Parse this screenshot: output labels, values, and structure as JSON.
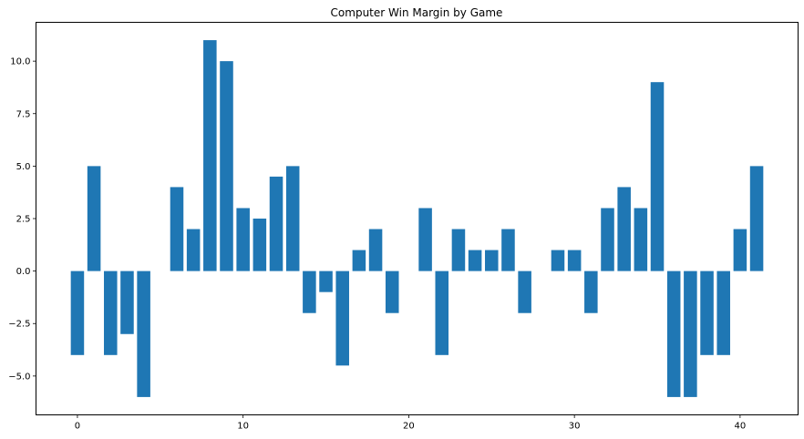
{
  "chart_data": {
    "type": "bar",
    "title": "Computer Win Margin by Game",
    "xlabel": "",
    "ylabel": "",
    "x": [
      0,
      1,
      2,
      3,
      4,
      5,
      6,
      7,
      8,
      9,
      10,
      11,
      12,
      13,
      14,
      15,
      16,
      17,
      18,
      19,
      20,
      21,
      22,
      23,
      24,
      25,
      26,
      27,
      28,
      29,
      30,
      31,
      32,
      33,
      34,
      35,
      36,
      37,
      38,
      39,
      40,
      41
    ],
    "values": [
      -4,
      5,
      -4,
      -3,
      -6,
      0,
      4,
      2,
      11,
      10,
      3,
      2.5,
      4.5,
      5,
      -2,
      -1,
      -4.5,
      1,
      2,
      -2,
      0,
      3,
      -4,
      2,
      1,
      1,
      2,
      -2,
      0,
      1,
      1,
      -2,
      3,
      4,
      3,
      9,
      -6,
      -6,
      -4,
      -4,
      2,
      5
    ],
    "xlim": [
      -2.5,
      43.5
    ],
    "ylim": [
      -6.85,
      11.85
    ],
    "xticks": [
      0,
      10,
      20,
      30,
      40
    ],
    "xtick_labels": [
      "0",
      "10",
      "20",
      "30",
      "40"
    ],
    "yticks": [
      -5,
      -2.5,
      0,
      2.5,
      5,
      7.5,
      10
    ],
    "ytick_labels": [
      "−5.0",
      "−2.5",
      "0.0",
      "2.5",
      "5.0",
      "7.5",
      "10.0"
    ],
    "bar_color": "#1f77b4",
    "grid": false,
    "legend": "none"
  }
}
